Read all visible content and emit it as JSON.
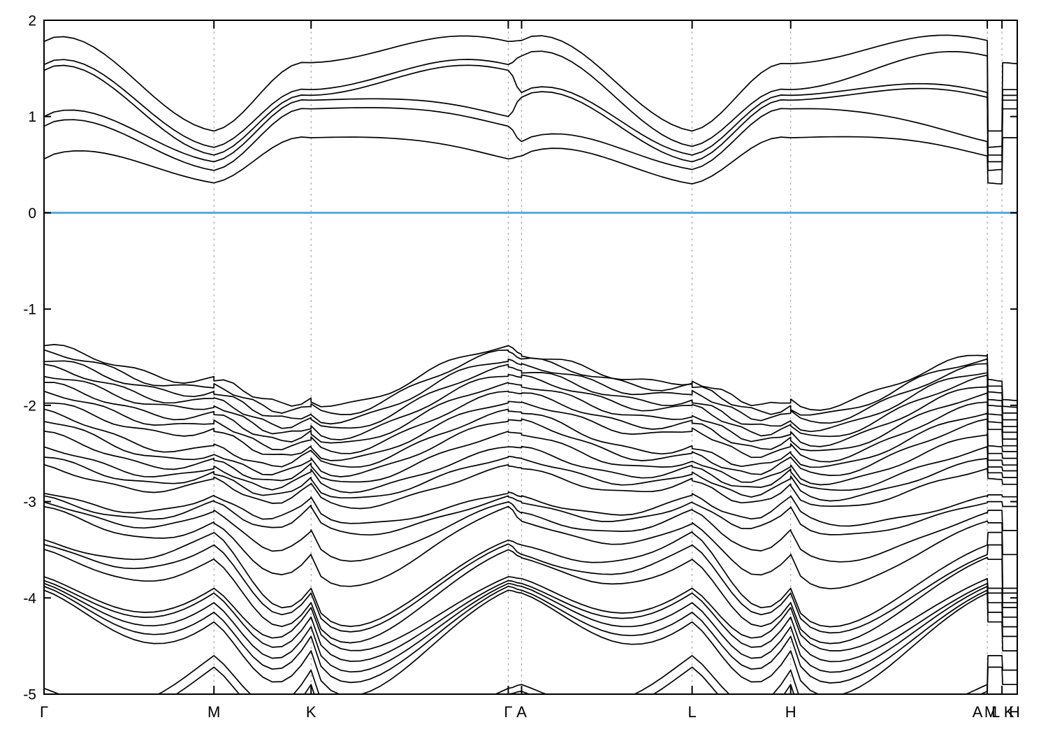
{
  "page": {
    "background": "#ffffff",
    "title": ""
  },
  "chart_data": {
    "type": "line",
    "subtype": "electronic-band-structure",
    "title": "",
    "xlabel": "",
    "ylabel": "",
    "ylim": [
      -5,
      2
    ],
    "ytick_values": [
      2,
      1,
      0,
      -1,
      -2,
      -3,
      -4,
      -5
    ],
    "ytick_labels": [
      "2",
      "1",
      "0",
      "-1",
      "-2",
      "-3",
      "-4",
      "-5"
    ],
    "fermi_level": 0,
    "legend": "none",
    "grid": {
      "vertical_dashed_at_kpoints": true,
      "horizontal": false
    },
    "colors": {
      "band": "#000000",
      "fermi_line": "#56aadd",
      "gridline": "#9a9a9a",
      "axis": "#000000",
      "background": "#ffffff",
      "text": "#000000"
    },
    "kpoints": [
      {
        "label": "Γ",
        "pos": 0.0
      },
      {
        "label": "M",
        "pos": 0.1746
      },
      {
        "label": "K",
        "pos": 0.2744
      },
      {
        "label": "Γ",
        "pos": 0.477
      },
      {
        "label": "A",
        "pos": 0.4907
      },
      {
        "label": "L",
        "pos": 0.6659
      },
      {
        "label": "H",
        "pos": 0.7672
      },
      {
        "label": "A",
        "pos": 0.9692
      },
      {
        "label": "M",
        "pos": 0.9699
      },
      {
        "label": "L",
        "pos": 0.9843
      },
      {
        "label": "K",
        "pos": 0.985
      },
      {
        "label": "H",
        "pos": 1.0
      }
    ],
    "gridline_positions": [
      0.1746,
      0.2744,
      0.477,
      0.4907,
      0.6659,
      0.7672,
      0.9692,
      0.9843
    ],
    "band_values_note": "each band = energy (eV) sampled at kpoints[] in order Γ,M,K,Γ,A,L,H,A,M,L,K,H",
    "bands": {
      "conduction": [
        [
          1.78,
          0.85,
          1.56,
          1.78,
          1.79,
          0.85,
          1.55,
          1.79,
          0.85,
          0.85,
          1.56,
          1.55
        ],
        [
          1.54,
          0.68,
          1.28,
          1.54,
          1.63,
          0.69,
          1.28,
          1.63,
          0.68,
          0.69,
          1.28,
          1.28
        ],
        [
          1.48,
          0.6,
          1.22,
          1.48,
          1.25,
          0.6,
          1.22,
          1.25,
          0.6,
          0.6,
          1.22,
          1.22
        ],
        [
          1.0,
          0.53,
          1.17,
          1.0,
          1.2,
          0.53,
          1.17,
          1.2,
          0.53,
          0.53,
          1.17,
          1.17
        ],
        [
          0.9,
          0.44,
          1.08,
          0.9,
          0.74,
          0.45,
          1.08,
          0.74,
          0.44,
          0.45,
          1.08,
          1.08
        ],
        [
          0.56,
          0.31,
          0.78,
          0.56,
          0.59,
          0.3,
          0.78,
          0.59,
          0.31,
          0.3,
          0.78,
          0.78
        ]
      ],
      "valence": [
        [
          -1.38,
          -1.73,
          -1.94,
          -1.38,
          -1.47,
          -1.75,
          -1.95,
          -1.47,
          -1.73,
          -1.75,
          -1.94,
          -1.95
        ],
        [
          -1.44,
          -1.8,
          -2.01,
          -1.44,
          -1.52,
          -1.8,
          -2.02,
          -1.52,
          -1.8,
          -1.8,
          -2.01,
          -2.02
        ],
        [
          -1.52,
          -1.86,
          -2.08,
          -1.52,
          -1.58,
          -1.87,
          -2.08,
          -1.58,
          -1.86,
          -1.87,
          -2.08,
          -2.08
        ],
        [
          -1.6,
          -1.94,
          -2.15,
          -1.6,
          -1.64,
          -1.95,
          -2.15,
          -1.64,
          -1.94,
          -1.95,
          -2.15,
          -2.15
        ],
        [
          -1.68,
          -2.0,
          -2.22,
          -1.68,
          -1.71,
          -2.01,
          -2.22,
          -1.71,
          -2.0,
          -2.01,
          -2.22,
          -2.22
        ],
        [
          -1.77,
          -2.09,
          -2.28,
          -1.77,
          -1.79,
          -2.1,
          -2.28,
          -1.79,
          -2.09,
          -2.1,
          -2.28,
          -2.28
        ],
        [
          -1.86,
          -2.17,
          -2.35,
          -1.86,
          -1.88,
          -2.18,
          -2.35,
          -1.88,
          -2.17,
          -2.18,
          -2.35,
          -2.35
        ],
        [
          -1.96,
          -2.25,
          -2.42,
          -1.96,
          -1.97,
          -2.25,
          -2.42,
          -1.97,
          -2.25,
          -2.25,
          -2.42,
          -2.42
        ],
        [
          -2.06,
          -2.42,
          -2.48,
          -2.06,
          -2.07,
          -2.43,
          -2.48,
          -2.07,
          -2.42,
          -2.43,
          -2.48,
          -2.48
        ],
        [
          -2.15,
          -2.5,
          -2.55,
          -2.15,
          -2.16,
          -2.5,
          -2.55,
          -2.16,
          -2.5,
          -2.5,
          -2.55,
          -2.55
        ],
        [
          -2.28,
          -2.57,
          -2.62,
          -2.28,
          -2.29,
          -2.57,
          -2.62,
          -2.29,
          -2.57,
          -2.57,
          -2.62,
          -2.62
        ],
        [
          -2.43,
          -2.64,
          -2.68,
          -2.43,
          -2.44,
          -2.64,
          -2.68,
          -2.44,
          -2.64,
          -2.64,
          -2.68,
          -2.68
        ],
        [
          -2.53,
          -2.7,
          -2.75,
          -2.53,
          -2.55,
          -2.7,
          -2.75,
          -2.55,
          -2.7,
          -2.7,
          -2.75,
          -2.75
        ],
        [
          -2.63,
          -2.76,
          -2.82,
          -2.63,
          -2.65,
          -2.77,
          -2.82,
          -2.65,
          -2.76,
          -2.77,
          -2.82,
          -2.82
        ],
        [
          -2.9,
          -2.93,
          -2.95,
          -2.9,
          -2.95,
          -2.93,
          -2.95,
          -2.95,
          -2.93,
          -2.93,
          -2.95,
          -2.95
        ],
        [
          -2.95,
          -3.0,
          -3.05,
          -2.95,
          -3.0,
          -3.0,
          -3.05,
          -3.0,
          -3.0,
          -3.0,
          -3.05,
          -3.05
        ],
        [
          -3.0,
          -3.09,
          -3.3,
          -3.0,
          -3.12,
          -3.09,
          -3.3,
          -3.12,
          -3.09,
          -3.09,
          -3.3,
          -3.3
        ],
        [
          -3.05,
          -3.22,
          -3.55,
          -3.05,
          -3.2,
          -3.22,
          -3.55,
          -3.2,
          -3.22,
          -3.22,
          -3.55,
          -3.55
        ],
        [
          -3.4,
          -3.32,
          -3.9,
          -3.4,
          -3.45,
          -3.32,
          -3.9,
          -3.45,
          -3.32,
          -3.32,
          -3.9,
          -3.9
        ],
        [
          -3.44,
          -3.45,
          -3.95,
          -3.44,
          -3.55,
          -3.45,
          -3.95,
          -3.55,
          -3.45,
          -3.45,
          -3.95,
          -3.95
        ],
        [
          -3.5,
          -3.6,
          -4.05,
          -3.5,
          -3.58,
          -3.6,
          -4.05,
          -3.58,
          -3.6,
          -3.6,
          -4.05,
          -4.05
        ],
        [
          -3.78,
          -3.9,
          -4.1,
          -3.78,
          -3.8,
          -3.9,
          -4.1,
          -3.8,
          -3.9,
          -3.9,
          -4.1,
          -4.1
        ],
        [
          -3.82,
          -3.95,
          -4.2,
          -3.82,
          -3.85,
          -3.95,
          -4.2,
          -3.85,
          -3.95,
          -3.95,
          -4.2,
          -4.2
        ],
        [
          -3.85,
          -4.05,
          -4.3,
          -3.85,
          -3.88,
          -4.05,
          -4.3,
          -3.88,
          -4.05,
          -4.05,
          -4.3,
          -4.3
        ],
        [
          -3.88,
          -4.15,
          -4.4,
          -3.88,
          -3.92,
          -4.15,
          -4.4,
          -3.92,
          -4.15,
          -4.15,
          -4.4,
          -4.4
        ],
        [
          -3.92,
          -4.25,
          -4.55,
          -3.92,
          -3.95,
          -4.25,
          -4.55,
          -3.95,
          -4.25,
          -4.25,
          -4.55,
          -4.55
        ],
        [
          -4.94,
          -4.6,
          -4.75,
          -4.94,
          -4.9,
          -4.6,
          -4.75,
          -4.9,
          -4.6,
          -4.6,
          -4.75,
          -4.75
        ],
        [
          -5.0,
          -4.72,
          -4.9,
          -5.0,
          -4.97,
          -4.72,
          -4.9,
          -4.97,
          -4.72,
          -4.72,
          -4.9,
          -4.9
        ]
      ]
    }
  }
}
